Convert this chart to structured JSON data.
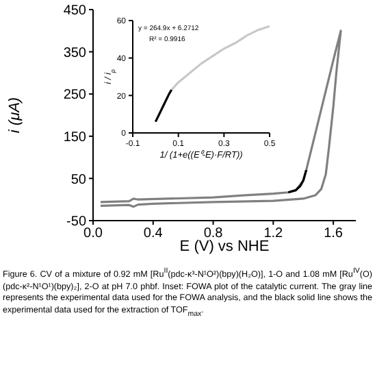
{
  "chart_data": [
    {
      "type": "line",
      "xlabel": "E (V) vs NHE",
      "ylabel": "i (μA)",
      "xlim": [
        0,
        1.75
      ],
      "ylim": [
        -50,
        450
      ],
      "xticks": [
        {
          "value": 0,
          "label": "0.0"
        },
        {
          "value": 0.4,
          "label": "0.4"
        },
        {
          "value": 0.8,
          "label": "0.8"
        },
        {
          "value": 1.2,
          "label": "1.2"
        },
        {
          "value": 1.6,
          "label": "1.6"
        }
      ],
      "yticks": [
        -50,
        50,
        150,
        250,
        350,
        450
      ],
      "marker": "none",
      "line_style": "solid",
      "series": [
        {
          "color": "#808080",
          "x": [
            0.05,
            0.24,
            0.27,
            0.3,
            0.5,
            0.8,
            1.0,
            1.2,
            1.3,
            1.35,
            1.4,
            1.42,
            1.5,
            1.6,
            1.65,
            1.62,
            1.6,
            1.57,
            1.55,
            1.52,
            1.48,
            1.4,
            1.2,
            0.8,
            0.4,
            0.3,
            0.27,
            0.24,
            0.05
          ],
          "values": [
            -6,
            -4,
            2,
            0,
            2,
            5,
            10,
            14,
            17,
            22,
            45,
            70,
            185,
            330,
            400,
            300,
            220,
            120,
            60,
            25,
            10,
            2,
            -3,
            -6,
            -10,
            -12,
            -17,
            -13,
            -15
          ]
        },
        {
          "color": "#000000",
          "x": [
            1.3,
            1.35,
            1.38,
            1.4,
            1.42
          ],
          "values": [
            17,
            22,
            32,
            45,
            70
          ]
        }
      ],
      "annotations": [
        "Figure 6. CV of a mixture of 0.92 mM [Ru$^{II}$(pdc-κ³-N¹O²)(bpy)(H₂O)], 1-O and 1.08 mM [Ru$^{IV}$(O)(pdc-κ²-N¹O¹)(bpy)₂], 2-O at pH 7.0 phbf. Inset: FOWA plot of the catalytic current. The gray line represents the experimental data used for the FOWA analysis, and the black solid line shows the experimental data used for the extraction of TOF$_{max}$."
      ]
    },
    {
      "type": "line",
      "xlabel": "1/ (1+e((E⁰-E)·F/RT))",
      "ylabel": "i / i$_{p}$",
      "xlim": [
        -0.1,
        0.5
      ],
      "ylim": [
        0,
        60
      ],
      "xticks": [
        -0.1,
        0.1,
        0.3,
        0.5
      ],
      "yticks": [
        0,
        20,
        40,
        60
      ],
      "marker": "none",
      "line_style": "solid",
      "series": [
        {
          "color": "#c8c8c8",
          "x": [
            0.07,
            0.1,
            0.15,
            0.2,
            0.25,
            0.3,
            0.35,
            0.4,
            0.45,
            0.5
          ],
          "values": [
            23,
            27,
            32,
            37,
            41,
            45,
            48,
            52,
            55,
            57
          ]
        },
        {
          "color": "#000000",
          "x": [
            0.0,
            0.02,
            0.04,
            0.06,
            0.07
          ],
          "values": [
            6,
            11,
            16,
            21,
            23
          ]
        }
      ],
      "annotations": [
        "y = 264.9x + 6.2712",
        "R² = 0.9916"
      ]
    }
  ]
}
